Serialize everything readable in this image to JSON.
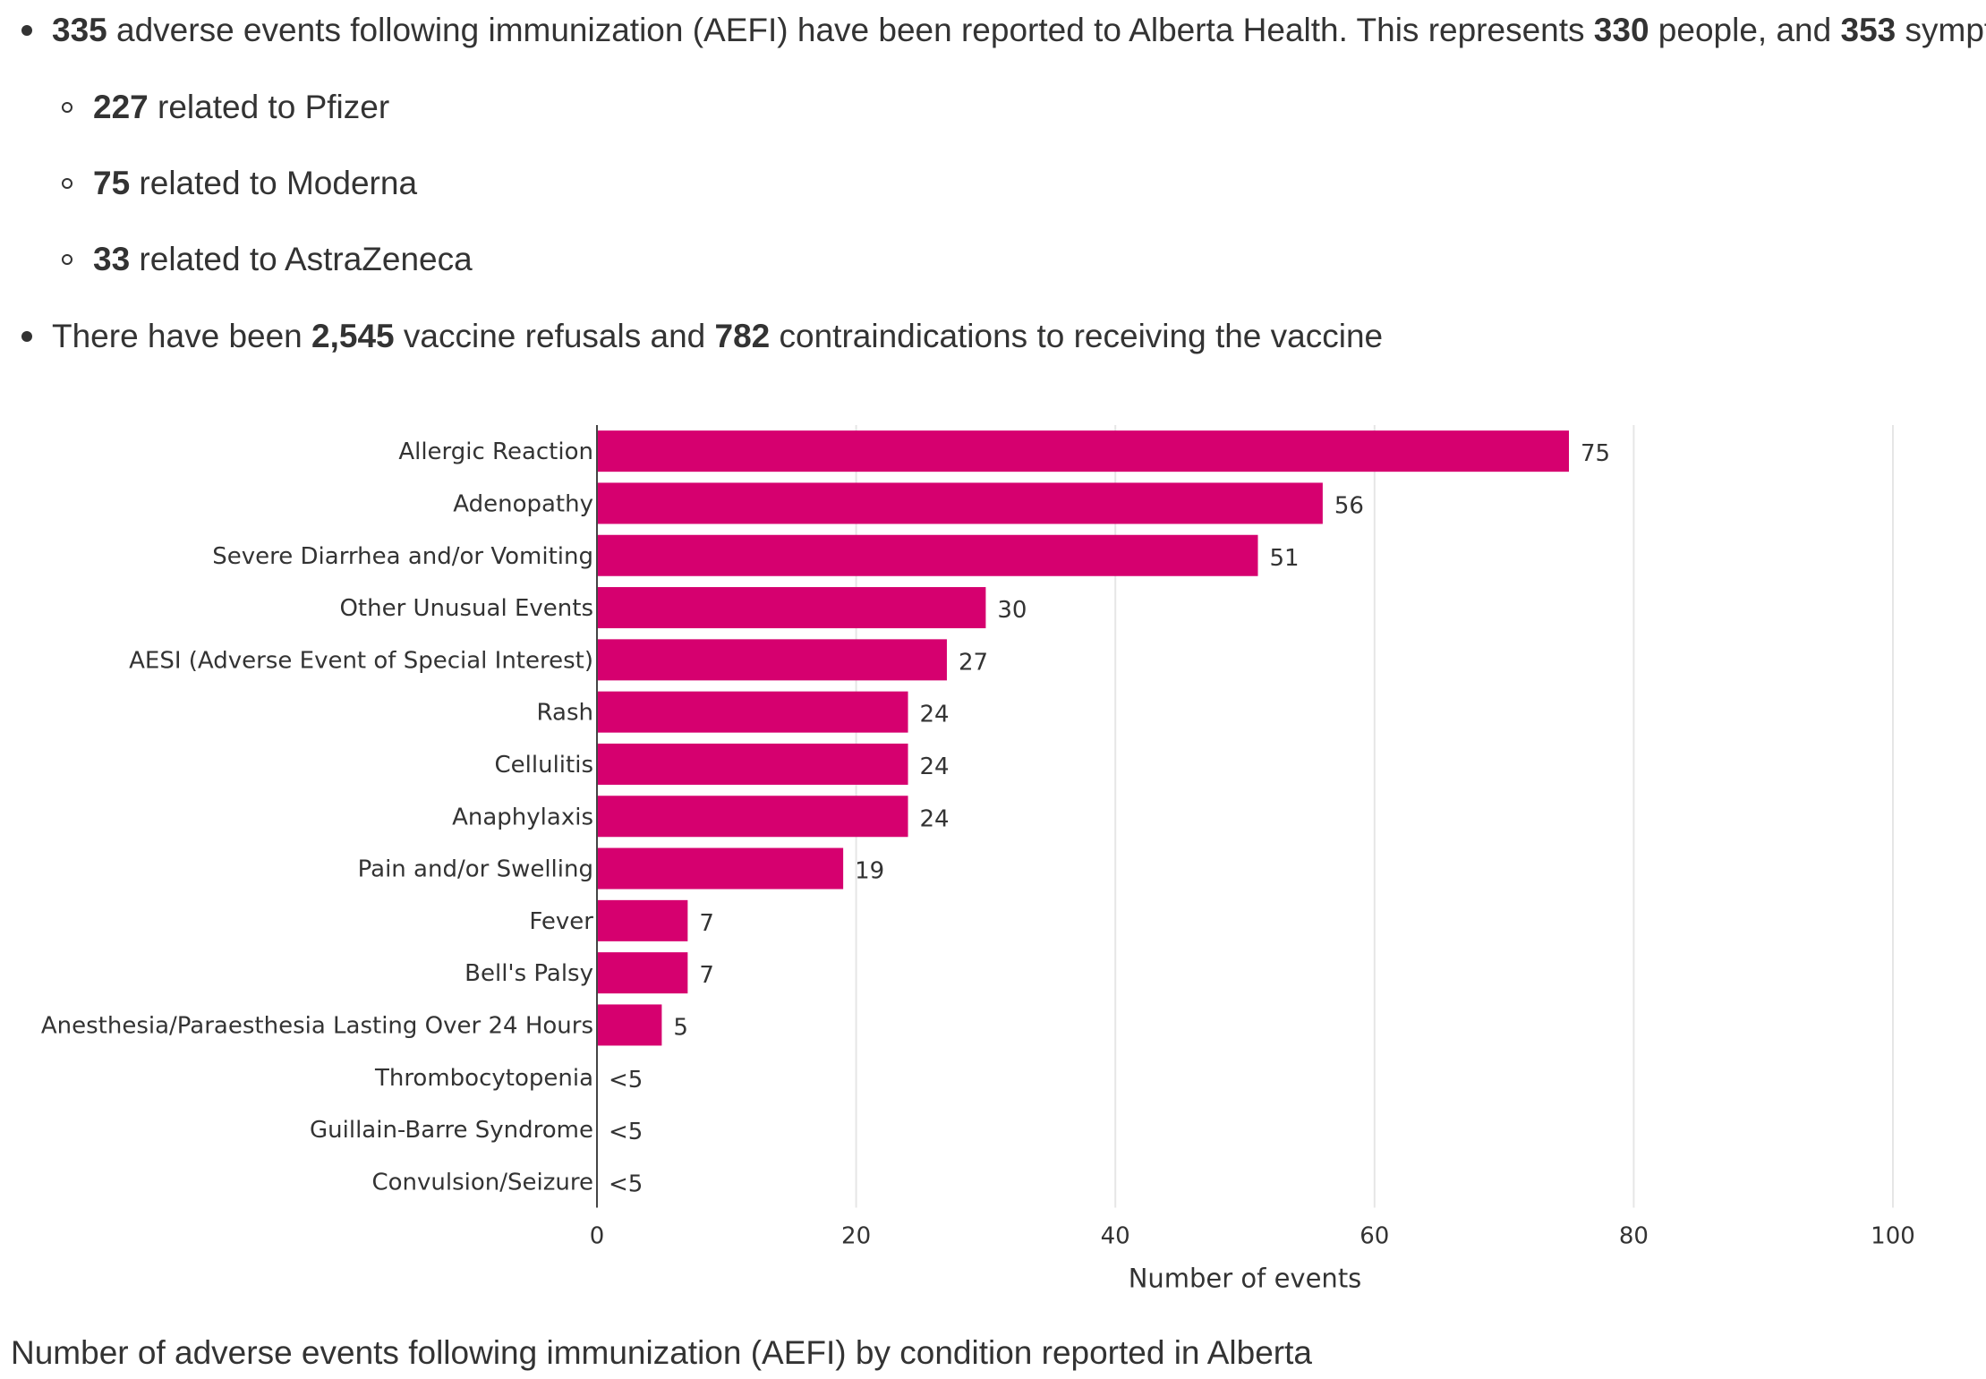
{
  "bullets": {
    "aefi": {
      "n1": "335",
      "t1": " adverse events following immunization (AEFI) have been reported to Alberta Health. This represents ",
      "n2": "330",
      "t2": " people, and ",
      "n3": "353",
      "t3": " symptoms."
    },
    "sub": [
      {
        "num": "227",
        "text": " related to Pfizer"
      },
      {
        "num": "75",
        "text": " related to Moderna"
      },
      {
        "num": "33",
        "text": " related to AstraZeneca"
      }
    ],
    "refusals": {
      "t1": "There have been ",
      "n1": "2,545",
      "t2": " vaccine refusals and ",
      "n2": "782",
      "t3": " contraindications to receiving the vaccine"
    }
  },
  "chart_data": {
    "type": "bar",
    "orientation": "horizontal",
    "title": "",
    "xlabel": "Number of events",
    "ylabel": "",
    "xlim": [
      0,
      100
    ],
    "xticks": [
      0,
      20,
      40,
      60,
      80,
      100
    ],
    "grid": "vertical",
    "bar_color": "#d6006f",
    "categories": [
      "Allergic Reaction",
      "Adenopathy",
      "Severe Diarrhea and/or Vomiting",
      "Other Unusual Events",
      "AESI (Adverse Event of Special Interest)",
      "Rash",
      "Cellulitis",
      "Anaphylaxis",
      "Pain and/or Swelling",
      "Fever",
      "Bell's Palsy",
      "Anesthesia/Paraesthesia Lasting Over 24 Hours",
      "Thrombocytopenia",
      "Guillain-Barre Syndrome",
      "Convulsion/Seizure"
    ],
    "values": [
      75,
      56,
      51,
      30,
      27,
      24,
      24,
      24,
      19,
      7,
      7,
      5,
      0,
      0,
      0
    ],
    "data_labels": [
      "75",
      "56",
      "51",
      "30",
      "27",
      "24",
      "24",
      "24",
      "19",
      "7",
      "7",
      "5",
      "<5",
      "<5",
      "<5"
    ]
  },
  "caption": "Number of adverse events following immunization (AEFI) by condition reported in Alberta"
}
